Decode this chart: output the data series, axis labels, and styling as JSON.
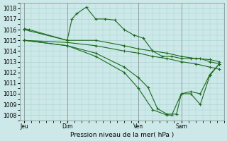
{
  "bg_color": "#cce8e8",
  "grid_color": "#aad4d4",
  "line_color": "#1a6b1a",
  "xlabel": "Pression niveau de la mer( hPa )",
  "ylim": [
    1007.5,
    1018.5
  ],
  "yticks": [
    1008,
    1009,
    1010,
    1011,
    1012,
    1013,
    1014,
    1015,
    1016,
    1017,
    1018
  ],
  "xtick_labels": [
    "Jeu",
    "Dim",
    "Ven",
    "Sam"
  ],
  "xtick_pos": [
    0,
    18,
    48,
    66
  ],
  "xlim": [
    -2,
    84
  ],
  "lines": [
    {
      "x": [
        0,
        2,
        18,
        20,
        22,
        26,
        30,
        34,
        38,
        42,
        46,
        50,
        54,
        58,
        62,
        66,
        70,
        74,
        78,
        82
      ],
      "y": [
        1016.1,
        1016.0,
        1015.0,
        1017.0,
        1017.5,
        1018.1,
        1017.0,
        1017.0,
        1016.9,
        1016.0,
        1015.5,
        1015.2,
        1014.0,
        1013.5,
        1013.5,
        1013.3,
        1013.3,
        1013.3,
        1013.0,
        1012.8
      ]
    },
    {
      "x": [
        0,
        18,
        30,
        42,
        48,
        54,
        60,
        66,
        72,
        78,
        82
      ],
      "y": [
        1016.0,
        1015.0,
        1015.0,
        1014.5,
        1014.2,
        1014.0,
        1013.8,
        1013.5,
        1013.3,
        1013.2,
        1013.0
      ]
    },
    {
      "x": [
        0,
        18,
        30,
        42,
        48,
        54,
        60,
        66,
        72,
        78,
        82
      ],
      "y": [
        1015.0,
        1014.8,
        1014.5,
        1014.0,
        1013.8,
        1013.5,
        1013.3,
        1013.0,
        1012.8,
        1012.5,
        1012.3
      ]
    },
    {
      "x": [
        0,
        18,
        30,
        42,
        48,
        52,
        56,
        60,
        64,
        66,
        70,
        74,
        78,
        82
      ],
      "y": [
        1015.0,
        1014.5,
        1013.8,
        1012.5,
        1011.5,
        1010.6,
        1008.6,
        1008.1,
        1008.1,
        1010.0,
        1010.0,
        1009.0,
        1011.7,
        1012.8
      ]
    },
    {
      "x": [
        0,
        18,
        30,
        42,
        48,
        54,
        60,
        62,
        66,
        70,
        74,
        78,
        82
      ],
      "y": [
        1015.0,
        1014.5,
        1013.5,
        1012.0,
        1010.5,
        1008.5,
        1008.0,
        1008.0,
        1010.0,
        1010.2,
        1010.0,
        1011.8,
        1012.8
      ]
    }
  ]
}
